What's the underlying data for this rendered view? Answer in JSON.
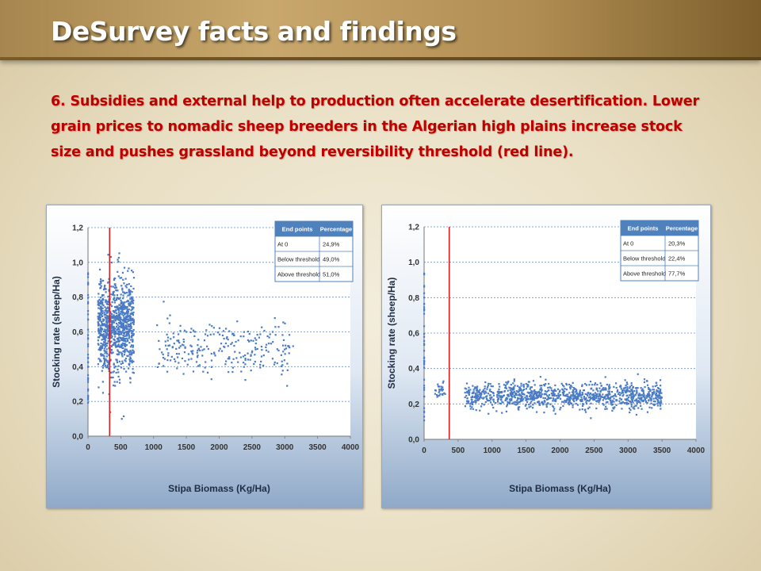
{
  "slide": {
    "title": "DeSurvey facts and findings",
    "body": "6.  Subsidies and external help to production often accelerate desertification. Lower grain prices to nomadic sheep breeders in the Algerian high plains increase stock size and pushes grassland beyond reversibility threshold (red line)."
  },
  "colors": {
    "dots": "#4a7bc4",
    "threshold_line": "#d62020",
    "table_header": "#4f81bd",
    "text_red": "#c00000"
  },
  "chart_data": [
    {
      "type": "scatter",
      "xlabel": "Stipa Biomass (Kg/Ha)",
      "ylabel": "Stocking rate (sheep/Ha)",
      "xlim": [
        0,
        4000
      ],
      "ylim": [
        0,
        1.2
      ],
      "x_ticks": [
        "0",
        "500",
        "1000",
        "1500",
        "2000",
        "2500",
        "3000",
        "3500",
        "4000"
      ],
      "y_ticks": [
        "0,0",
        "0,2",
        "0,4",
        "0,6",
        "0,8",
        "1,0",
        "1,2"
      ],
      "threshold_x": 330,
      "table": {
        "headers": [
          "End points",
          "Percentage"
        ],
        "rows": [
          [
            "At 0",
            "24,9%"
          ],
          [
            "Below threshold",
            "49,0%"
          ],
          [
            "Above threshold",
            "51,0%"
          ]
        ]
      },
      "clusters": [
        {
          "x_range": [
            150,
            700
          ],
          "y_center": 0.64,
          "y_spread": 0.13,
          "count": 1000
        },
        {
          "x_range": [
            1050,
            3150
          ],
          "y_center": 0.5,
          "y_spread": 0.08,
          "count": 260
        }
      ]
    },
    {
      "type": "scatter",
      "xlabel": "Stipa Biomass (Kg/Ha)",
      "ylabel": "Stocking rate (sheep/Ha)",
      "xlim": [
        0,
        4000
      ],
      "ylim": [
        0,
        1.2
      ],
      "x_ticks": [
        "0",
        "500",
        "1000",
        "1500",
        "2000",
        "2500",
        "3000",
        "3500",
        "4000"
      ],
      "y_ticks": [
        "0,0",
        "0,2",
        "0,4",
        "0,6",
        "0,8",
        "1,0",
        "1,2"
      ],
      "threshold_x": 370,
      "table": {
        "headers": [
          "End points",
          "Percentage"
        ],
        "rows": [
          [
            "At 0",
            "20,3%"
          ],
          [
            "Below threshold",
            "22,4%"
          ],
          [
            "Above threshold",
            "77,7%"
          ]
        ]
      },
      "clusters": [
        {
          "x_range": [
            150,
            310
          ],
          "y_center": 0.28,
          "y_spread": 0.025,
          "count": 30
        },
        {
          "x_range": [
            600,
            3500
          ],
          "y_center": 0.245,
          "y_spread": 0.035,
          "count": 1100
        }
      ]
    }
  ]
}
